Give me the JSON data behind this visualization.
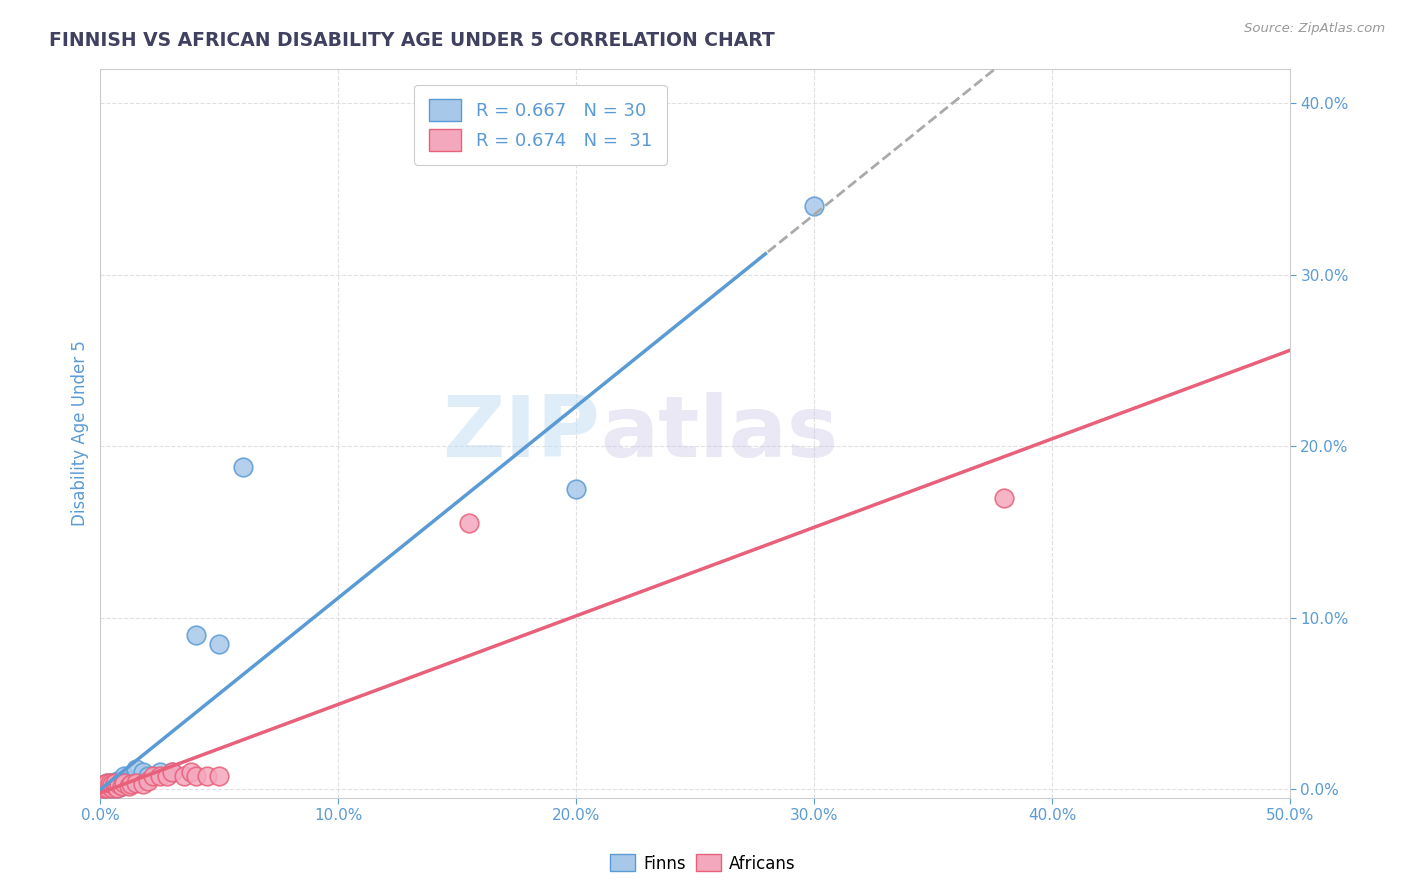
{
  "title": "FINNISH VS AFRICAN DISABILITY AGE UNDER 5 CORRELATION CHART",
  "source": "Source: ZipAtlas.com",
  "xlim": [
    0.0,
    0.5
  ],
  "ylim": [
    -0.005,
    0.42
  ],
  "ylabel": "Disability Age Under 5",
  "legend_label1": "Finns",
  "legend_label2": "Africans",
  "r1": 0.667,
  "n1": 30,
  "r2": 0.674,
  "n2": 31,
  "color_finn": "#a8c8ea",
  "color_african": "#f4a8be",
  "color_finn_line": "#5b9bd5",
  "color_african_line": "#e8607a",
  "color_dashed": "#aaaaaa",
  "watermark_zip": "ZIP",
  "watermark_atlas": "atlas",
  "finn_x": [
    0.001,
    0.002,
    0.002,
    0.003,
    0.003,
    0.004,
    0.004,
    0.005,
    0.005,
    0.006,
    0.006,
    0.007,
    0.007,
    0.008,
    0.009,
    0.01,
    0.01,
    0.011,
    0.012,
    0.013,
    0.015,
    0.018,
    0.02,
    0.025,
    0.03,
    0.04,
    0.05,
    0.06,
    0.2,
    0.3
  ],
  "finn_y": [
    0.001,
    0.002,
    0.003,
    0.001,
    0.004,
    0.002,
    0.003,
    0.001,
    0.004,
    0.002,
    0.003,
    0.001,
    0.005,
    0.003,
    0.002,
    0.004,
    0.008,
    0.003,
    0.005,
    0.004,
    0.012,
    0.01,
    0.008,
    0.01,
    0.01,
    0.09,
    0.085,
    0.188,
    0.175,
    0.34
  ],
  "african_x": [
    0.001,
    0.002,
    0.002,
    0.003,
    0.003,
    0.004,
    0.004,
    0.005,
    0.005,
    0.006,
    0.006,
    0.007,
    0.008,
    0.009,
    0.01,
    0.012,
    0.013,
    0.015,
    0.018,
    0.02,
    0.022,
    0.025,
    0.028,
    0.03,
    0.035,
    0.038,
    0.04,
    0.045,
    0.05,
    0.38,
    0.155
  ],
  "african_y": [
    0.001,
    0.002,
    0.003,
    0.001,
    0.004,
    0.002,
    0.004,
    0.001,
    0.003,
    0.002,
    0.004,
    0.001,
    0.003,
    0.002,
    0.004,
    0.002,
    0.003,
    0.004,
    0.003,
    0.005,
    0.008,
    0.008,
    0.008,
    0.01,
    0.008,
    0.01,
    0.008,
    0.008,
    0.008,
    0.17,
    0.155
  ],
  "finn_line_x_solid_end": 0.28,
  "grid_color": "#dddddd",
  "background_color": "#ffffff",
  "title_color": "#404060",
  "tick_color": "#5b9bd5",
  "x_ticks": [
    0.0,
    0.1,
    0.2,
    0.3,
    0.4,
    0.5
  ],
  "y_ticks": [
    0.0,
    0.1,
    0.2,
    0.3,
    0.4
  ]
}
